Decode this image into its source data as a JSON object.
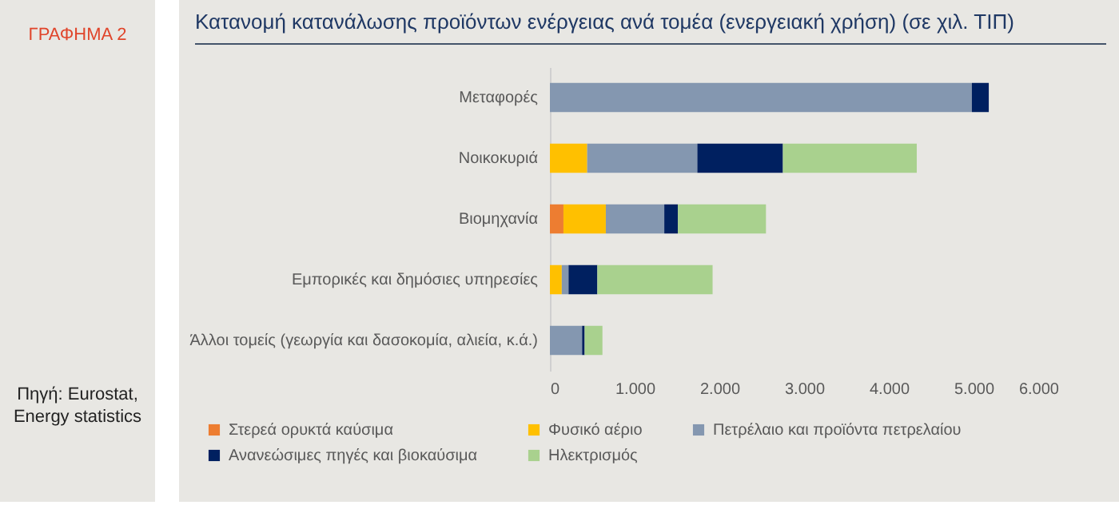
{
  "chart_data": {
    "type": "bar",
    "orientation": "horizontal",
    "stacked": true,
    "title": "Κατανομή κατανάλωσης προϊόντων ενέργειας ανά τομέα (ενεργειακή χρήση) (σε χιλ. ΤΙΠ)",
    "annotations": [
      "ΓΡΑΦΗΜΑ 2",
      "Πηγή: Eurostat, Energy statistics"
    ],
    "categories": [
      "Μεταφορές",
      "Νοικοκυριά",
      "Βιομηχανία",
      "Εμπορικές και δημόσιες υπηρεσίες",
      "Άλλοι τομείς (γεωργία και δασοκομία, αλιεία, κ.ά.)"
    ],
    "series": [
      {
        "name": "Στερεά ορυκτά καύσιμα",
        "color": "#ed7d31",
        "values": [
          null,
          null,
          160,
          null,
          null
        ]
      },
      {
        "name": "Φυσικό αέριο",
        "color": "#ffc000",
        "values": [
          null,
          440,
          500,
          140,
          null
        ]
      },
      {
        "name": "Πετρέλαιο και προϊόντα πετρελαίου",
        "color": "#8497b0",
        "values": [
          4980,
          1300,
          690,
          80,
          380
        ]
      },
      {
        "name": "Ανανεώσιμες πηγές και βιοκαύσιμα",
        "color": "#002060",
        "values": [
          200,
          1010,
          160,
          340,
          30
        ]
      },
      {
        "name": "Ηλεκτρισμός",
        "color": "#a9d18e",
        "values": [
          null,
          1580,
          1040,
          1360,
          210
        ]
      }
    ],
    "xlim": [
      0,
      6000
    ],
    "xticks": [
      0,
      {
        "value": 1000,
        "label": "1.000"
      },
      {
        "value": 2000,
        "label": "2.000"
      },
      {
        "value": 3000,
        "label": "3.000"
      },
      {
        "value": 4000,
        "label": "4.000"
      },
      {
        "value": 5000,
        "label": "5.000"
      },
      {
        "value": 6000,
        "label": "6.000"
      }
    ],
    "legend": "bottom"
  }
}
